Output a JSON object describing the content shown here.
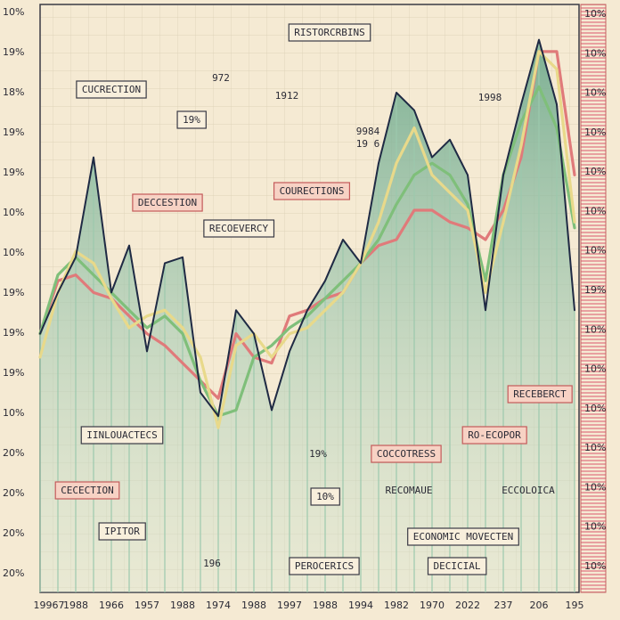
{
  "chart_data": {
    "type": "line",
    "categories": [
      "19967",
      null,
      "1988",
      null,
      "1966",
      null,
      "1957",
      null,
      "1988",
      null,
      "1974",
      null,
      "1988",
      null,
      "1997",
      null,
      "1988",
      null,
      "1994",
      null,
      "1982",
      null,
      "1970",
      null,
      "2022",
      null,
      "237",
      null,
      "206",
      null,
      "195"
    ],
    "ylim": [
      0,
      100
    ],
    "area_fill": "#9cc9ad",
    "series": [
      {
        "name": "dark",
        "color": "#1f2a44",
        "values": [
          44,
          51,
          57,
          74,
          51,
          59,
          41,
          56,
          57,
          34,
          30,
          48,
          44,
          31,
          41,
          48,
          53,
          60,
          56,
          73,
          85,
          82,
          74,
          77,
          71,
          48,
          71,
          83,
          94,
          83,
          48
        ]
      },
      {
        "name": "green",
        "color": "#7fbf7a",
        "values": [
          44,
          54,
          57,
          54,
          51,
          48,
          45,
          47,
          44,
          36,
          30,
          31,
          40,
          42,
          45,
          47,
          50,
          53,
          56,
          60,
          66,
          71,
          73,
          71,
          66,
          53,
          71,
          80,
          86,
          79,
          62
        ]
      },
      {
        "name": "yellow",
        "color": "#e8d98a",
        "values": [
          40,
          51,
          58,
          56,
          50,
          45,
          47,
          48,
          45,
          40,
          28,
          42,
          44,
          40,
          44,
          45,
          48,
          51,
          56,
          63,
          73,
          79,
          71,
          68,
          65,
          51,
          63,
          76,
          92,
          89,
          63
        ]
      },
      {
        "name": "red",
        "color": "#e07a7a",
        "values": [
          44,
          53,
          54,
          51,
          50,
          47,
          44,
          42,
          39,
          36,
          33,
          44,
          40,
          39,
          47,
          48,
          50,
          51,
          56,
          59,
          60,
          65,
          65,
          63,
          62,
          60,
          65,
          74,
          92,
          92,
          71
        ]
      }
    ],
    "left_axis_labels": [
      "10%",
      "19%",
      "18%",
      "19%",
      "19%",
      "10%",
      "10%",
      "19%",
      "19%",
      "19%",
      "10%",
      "20%",
      "20%",
      "20%",
      "20%"
    ],
    "right_axis_labels": [
      "10%",
      "10%",
      "10%",
      "10%",
      "10%",
      "10%",
      "10%",
      "19%",
      "10%",
      "10%",
      "10%",
      "10%",
      "10%",
      "10%",
      "10%"
    ],
    "annotations": [
      {
        "text": "RISTORCRBINS",
        "style": "box"
      },
      {
        "text": "CUCRECTION",
        "style": "box"
      },
      {
        "text": "972",
        "style": "plain"
      },
      {
        "text": "19%",
        "style": "box"
      },
      {
        "text": "1912",
        "style": "plain"
      },
      {
        "text": "1998",
        "style": "plain"
      },
      {
        "text": "9984",
        "style": "plain"
      },
      {
        "text": "19 6",
        "style": "plain"
      },
      {
        "text": "DECCESTION",
        "style": "red"
      },
      {
        "text": "COURECTIONS",
        "style": "red"
      },
      {
        "text": "RECOEVERCY",
        "style": "box"
      },
      {
        "text": "RECEBERCT",
        "style": "red"
      },
      {
        "text": "IINLOUACTECS",
        "style": "box"
      },
      {
        "text": "RO-ECOPOR",
        "style": "red"
      },
      {
        "text": "19%",
        "style": "plain"
      },
      {
        "text": "COCCOTRESS",
        "style": "red"
      },
      {
        "text": "CECECTION",
        "style": "red"
      },
      {
        "text": "10%",
        "style": "box"
      },
      {
        "text": "RECOMAUE",
        "style": "plain"
      },
      {
        "text": "ECCOLOICA",
        "style": "plain"
      },
      {
        "text": "IPITOR",
        "style": "box"
      },
      {
        "text": "ECONOMIC MOVECTEN",
        "style": "box"
      },
      {
        "text": "196",
        "style": "plain"
      },
      {
        "text": "PEROCERICS",
        "style": "box"
      },
      {
        "text": "DECICIAL",
        "style": "box"
      }
    ]
  }
}
